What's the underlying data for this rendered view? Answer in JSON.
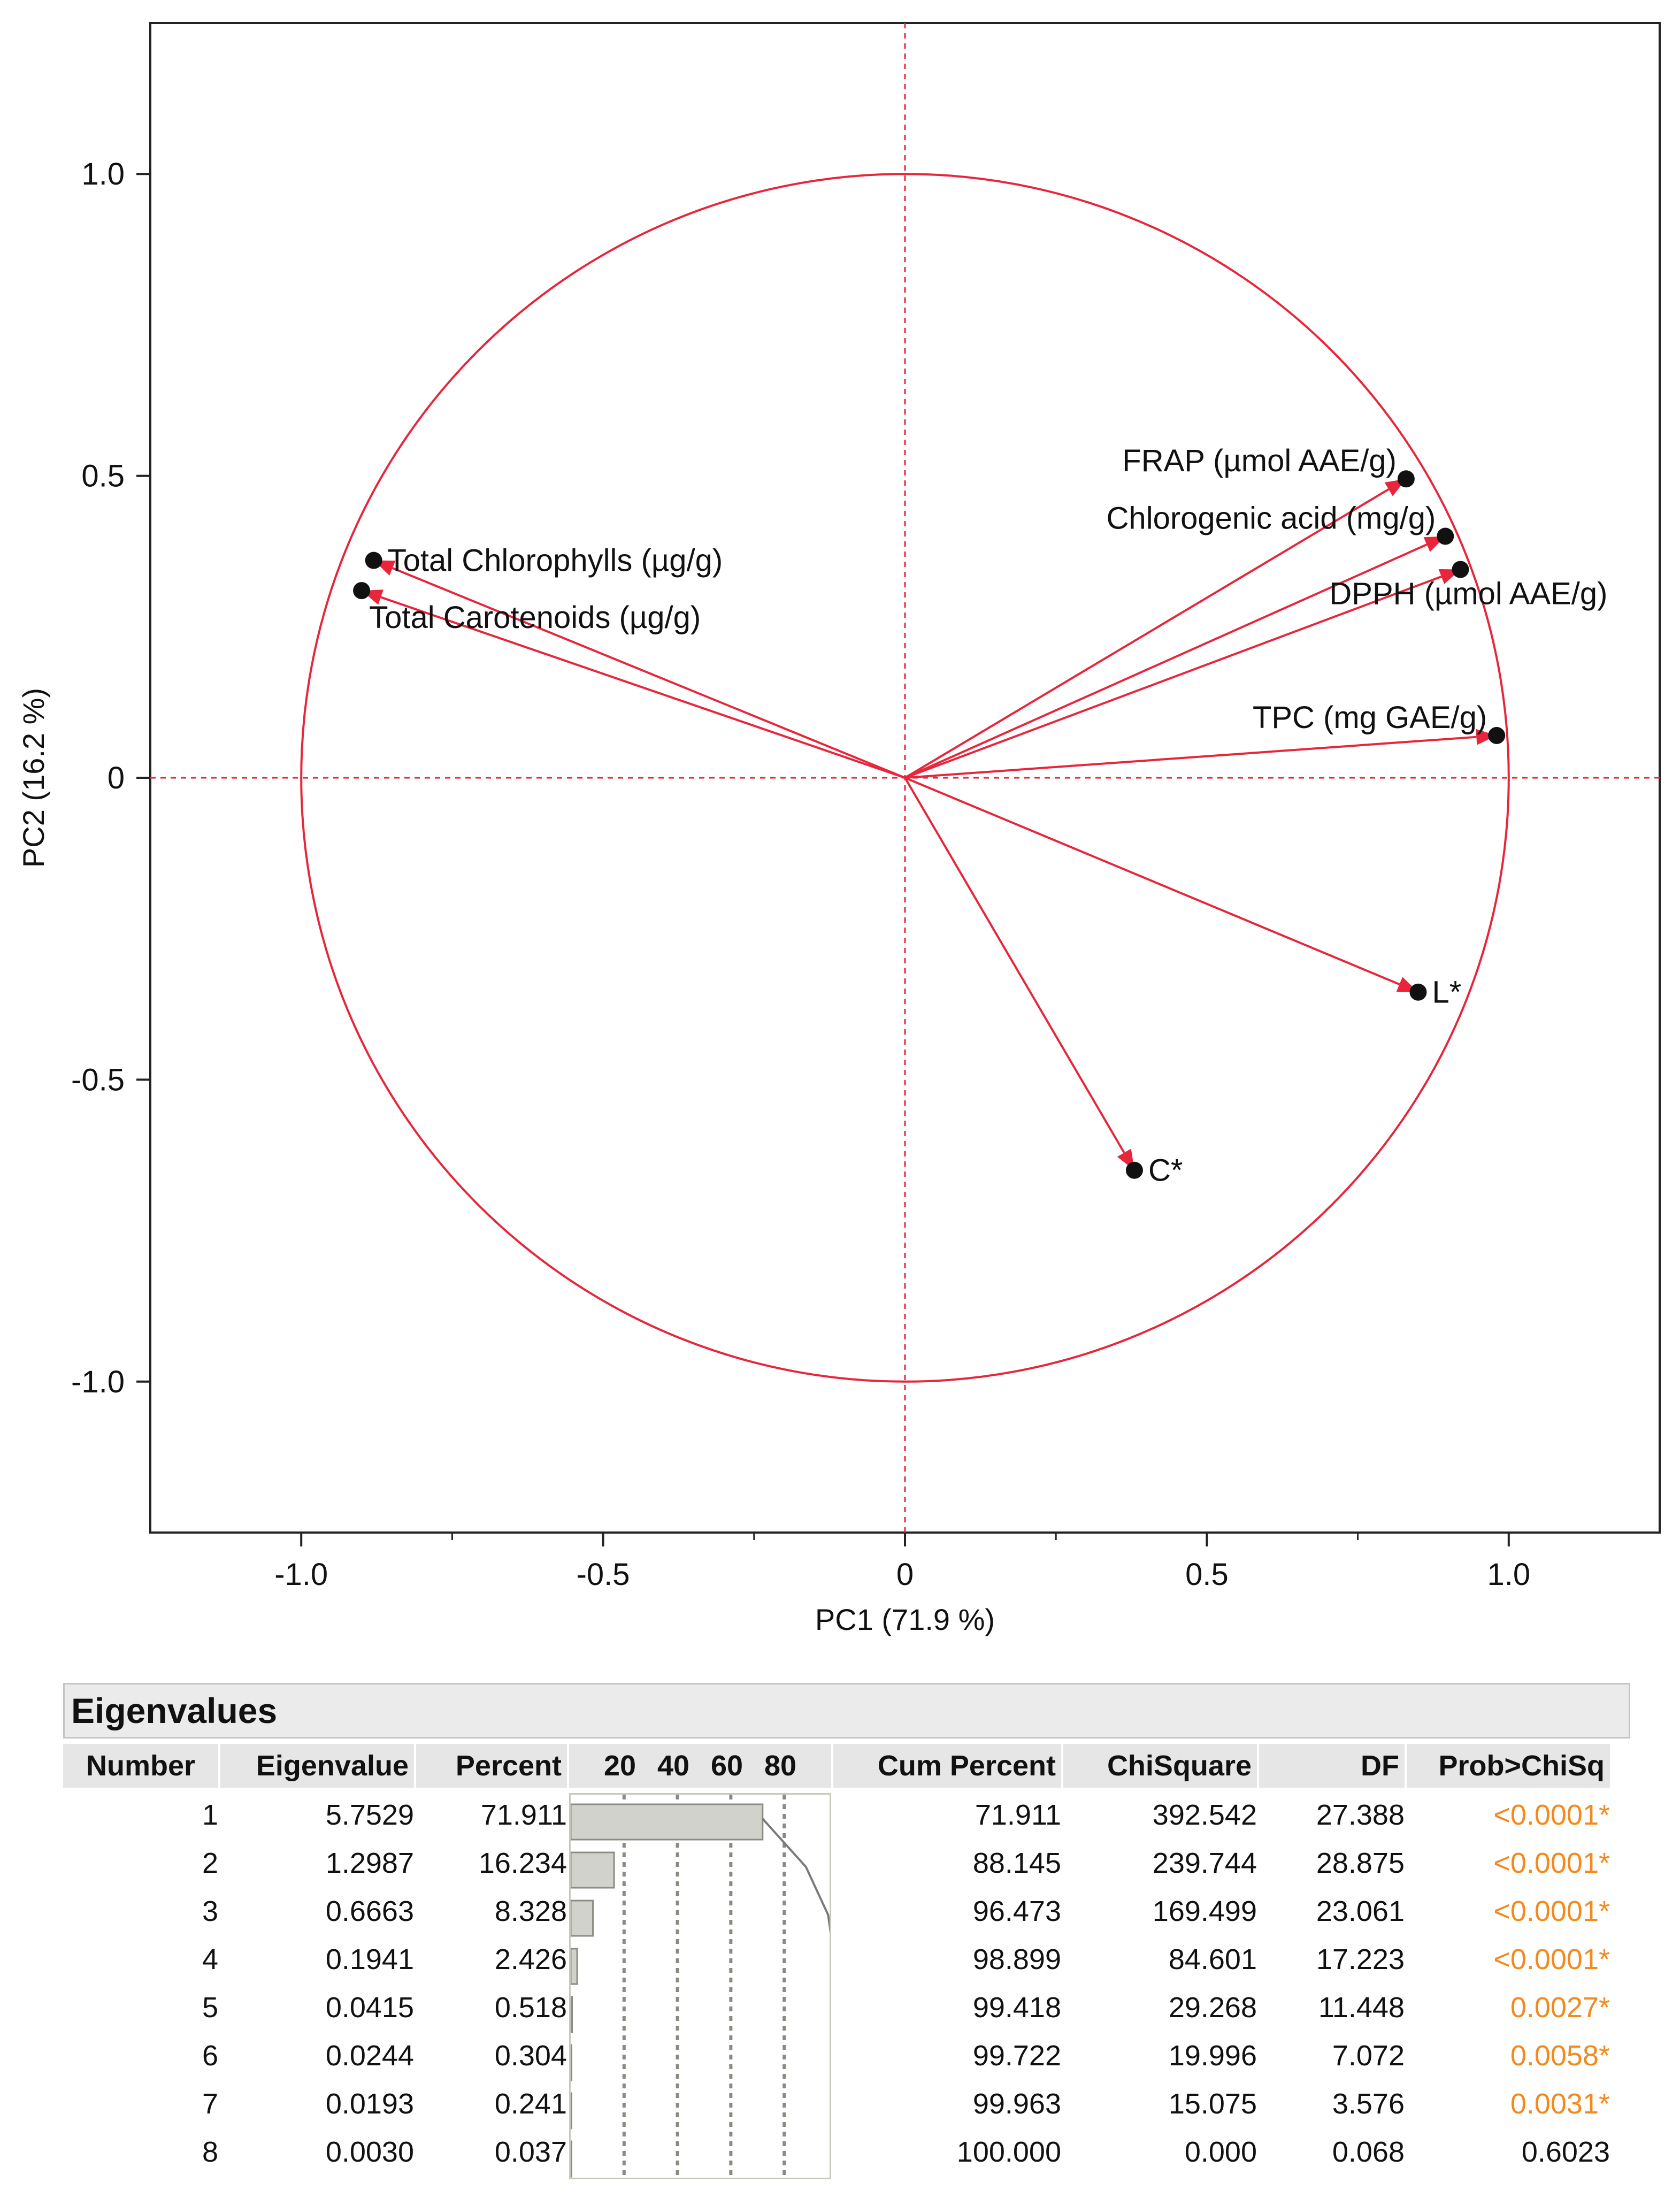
{
  "chart_data": [
    {
      "type": "scatter",
      "subtype": "pca-loading-plot",
      "xlabel": "PC1  (71.9 %)",
      "ylabel": "PC2  (16.2 %)",
      "xlim": [
        -1.25,
        1.25
      ],
      "ylim": [
        -1.25,
        1.25
      ],
      "x_ticks": [
        {
          "value": -1.0,
          "label": "-1.0"
        },
        {
          "value": -0.5,
          "label": "-0.5"
        },
        {
          "value": 0,
          "label": "0"
        },
        {
          "value": 0.5,
          "label": "0.5"
        },
        {
          "value": 1.0,
          "label": "1.0"
        }
      ],
      "y_ticks": [
        {
          "value": 1.0,
          "label": "1.0"
        },
        {
          "value": 0.5,
          "label": "0.5"
        },
        {
          "value": 0,
          "label": "0"
        },
        {
          "value": -0.5,
          "label": "-0.5"
        },
        {
          "value": -1.0,
          "label": "-1.0"
        }
      ],
      "unit_circle": true,
      "reference_lines": "dashed at x=0 and y=0",
      "line_color": "#e8253a",
      "loadings": [
        {
          "label": "Total Chlorophylls (µg/g)",
          "x": -0.88,
          "y": 0.36,
          "label_pos": "right"
        },
        {
          "label": "Total Carotenoids (µg/g)",
          "x": -0.9,
          "y": 0.31,
          "label_pos": "below-right"
        },
        {
          "label": "FRAP (µmol AAE/g)",
          "x": 0.83,
          "y": 0.495,
          "label_pos": "left"
        },
        {
          "label": "Chlorogenic acid (mg/g)",
          "x": 0.895,
          "y": 0.4,
          "label_pos": "left"
        },
        {
          "label": "DPPH (µmol AAE/g)",
          "x": 0.92,
          "y": 0.345,
          "label_pos": "below-left"
        },
        {
          "label": "TPC (mg GAE/g)",
          "x": 0.98,
          "y": 0.07,
          "label_pos": "left"
        },
        {
          "label": "L*",
          "x": 0.85,
          "y": -0.355,
          "label_pos": "right"
        },
        {
          "label": "C*",
          "x": 0.38,
          "y": -0.65,
          "label_pos": "right"
        }
      ]
    },
    {
      "type": "table",
      "title": "Eigenvalues",
      "columns": [
        "Number",
        "Eigenvalue",
        "Percent",
        "Cum Percent",
        "ChiSquare",
        "DF",
        "Prob>ChiSq"
      ],
      "bar_axis_labels": [
        "20",
        "40",
        "60",
        "80"
      ],
      "rows": [
        {
          "number": "1",
          "eigenvalue": "5.7529",
          "percent": "71.911",
          "percent_value": 71.911,
          "cum_percent": "71.911",
          "cum_value": 71.911,
          "chisquare": "392.542",
          "df": "27.388",
          "prob": "<0.0001*",
          "significant": true
        },
        {
          "number": "2",
          "eigenvalue": "1.2987",
          "percent": "16.234",
          "percent_value": 16.234,
          "cum_percent": "88.145",
          "cum_value": 88.145,
          "chisquare": "239.744",
          "df": "28.875",
          "prob": "<0.0001*",
          "significant": true
        },
        {
          "number": "3",
          "eigenvalue": "0.6663",
          "percent": "8.328",
          "percent_value": 8.328,
          "cum_percent": "96.473",
          "cum_value": 96.473,
          "chisquare": "169.499",
          "df": "23.061",
          "prob": "<0.0001*",
          "significant": true
        },
        {
          "number": "4",
          "eigenvalue": "0.1941",
          "percent": "2.426",
          "percent_value": 2.426,
          "cum_percent": "98.899",
          "cum_value": 98.899,
          "chisquare": "84.601",
          "df": "17.223",
          "prob": "<0.0001*",
          "significant": true
        },
        {
          "number": "5",
          "eigenvalue": "0.0415",
          "percent": "0.518",
          "percent_value": 0.518,
          "cum_percent": "99.418",
          "cum_value": 99.418,
          "chisquare": "29.268",
          "df": "11.448",
          "prob": "0.0027*",
          "significant": true
        },
        {
          "number": "6",
          "eigenvalue": "0.0244",
          "percent": "0.304",
          "percent_value": 0.304,
          "cum_percent": "99.722",
          "cum_value": 99.722,
          "chisquare": "19.996",
          "df": "7.072",
          "prob": "0.0058*",
          "significant": true
        },
        {
          "number": "7",
          "eigenvalue": "0.0193",
          "percent": "0.241",
          "percent_value": 0.241,
          "cum_percent": "99.963",
          "cum_value": 99.963,
          "chisquare": "15.075",
          "df": "3.576",
          "prob": "0.0031*",
          "significant": true
        },
        {
          "number": "8",
          "eigenvalue": "0.0030",
          "percent": "0.037",
          "percent_value": 0.037,
          "cum_percent": "100.000",
          "cum_value": 100.0,
          "chisquare": "0.000",
          "df": "0.068",
          "prob": "0.6023",
          "significant": false
        }
      ]
    }
  ],
  "colors": {
    "loading_line": "#e8253a",
    "marker": "#111111",
    "significant_prob": "#f28a1e",
    "bar_fill": "#d2d2cc",
    "bar_stroke": "#8c8c84",
    "header_bg": "#ebebeb"
  }
}
